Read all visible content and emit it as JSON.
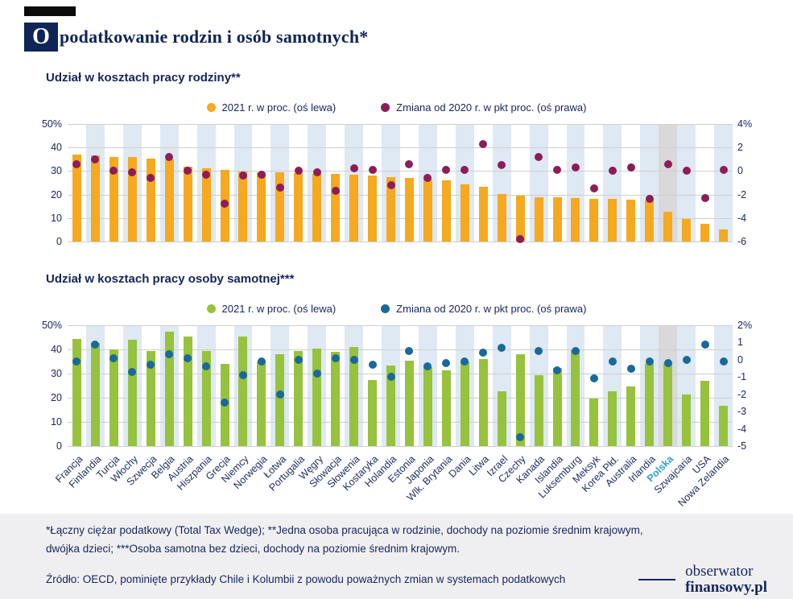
{
  "header": {
    "initial": "O",
    "title_rest": "podatkowanie rodzin i osób samotnych*"
  },
  "style": {
    "band_color": "#DEE9F3",
    "highlight_band_color": "#D9D9DA",
    "grid_color": "#CFCFCF",
    "text_color": "#14265E",
    "highlight_label_color": "#2FA0D8"
  },
  "highlight": {
    "country": "Polska"
  },
  "chart_data": [
    {
      "type": "bar",
      "title": "Udział w kosztach pracy rodziny**",
      "legend_position": "top",
      "grid": "horizontal",
      "categories": [
        "Francja",
        "Finlandia",
        "Turcja",
        "Włochy",
        "Szwecja",
        "Belgia",
        "Austria",
        "Hiszpania",
        "Grecja",
        "Niemcy",
        "Norwegia",
        "Łotwa",
        "Portugalia",
        "Węgry",
        "Słowacja",
        "Słowenia",
        "Kostaryka",
        "Holandia",
        "Estonia",
        "Japonia",
        "Wlk. Brytania",
        "Dania",
        "Litwa",
        "Izrael",
        "Czechy",
        "Kanada",
        "Islandia",
        "Luksemburg",
        "Meksyk",
        "Korea Płd.",
        "Australia",
        "Irlandia",
        "Polska",
        "Szwajcaria",
        "USA",
        "Nowa Zelandia"
      ],
      "series": [
        {
          "name": "2021 r. w proc. (oś lewa)",
          "type": "bar",
          "axis": "left",
          "color": "#F6A81F",
          "values": [
            36.9,
            36.6,
            35.9,
            35.8,
            35.4,
            34.8,
            32.0,
            31.0,
            30.6,
            29.8,
            29.6,
            29.4,
            29.2,
            28.9,
            28.6,
            28.3,
            28.0,
            27.3,
            27.0,
            26.5,
            25.9,
            24.2,
            23.2,
            20.2,
            19.4,
            18.9,
            18.7,
            18.5,
            18.3,
            18.1,
            17.9,
            17.6,
            12.6,
            9.6,
            7.5,
            5.0
          ]
        },
        {
          "name": "Zmiana od 2020 r. w pkt proc. (oś prawa)",
          "type": "scatter",
          "axis": "right",
          "color": "#8C1D59",
          "values": [
            0.6,
            1.0,
            0.0,
            -0.1,
            -0.6,
            1.2,
            0.0,
            -0.3,
            -2.8,
            -0.4,
            -0.3,
            -1.4,
            0.0,
            -0.1,
            -1.7,
            0.2,
            0.1,
            -1.2,
            0.6,
            -0.6,
            0.1,
            0.1,
            2.3,
            0.5,
            -5.8,
            1.2,
            0.1,
            0.3,
            -1.5,
            0.0,
            0.3,
            -2.4,
            0.6,
            0.0,
            -2.3,
            0.1
          ]
        }
      ],
      "left_axis": {
        "min": 0,
        "max": 50,
        "ticks": [
          {
            "label": "50%",
            "value": 50
          },
          {
            "label": "40",
            "value": 40
          },
          {
            "label": "30",
            "value": 30
          },
          {
            "label": "20",
            "value": 20
          },
          {
            "label": "10",
            "value": 10
          },
          {
            "label": "0",
            "value": 0
          }
        ]
      },
      "right_axis": {
        "min": -6,
        "max": 4,
        "ticks": [
          {
            "label": "4%",
            "value": 4
          },
          {
            "label": "2",
            "value": 2
          },
          {
            "label": "0",
            "value": 0
          },
          {
            "label": "-2",
            "value": -2
          },
          {
            "label": "-4",
            "value": -4
          },
          {
            "label": "-6",
            "value": -6
          }
        ]
      }
    },
    {
      "type": "bar",
      "title": "Udział w kosztach pracy osoby samotnej***",
      "legend_position": "top",
      "grid": "horizontal",
      "categories": [
        "Francja",
        "Finlandia",
        "Turcja",
        "Włochy",
        "Szwecja",
        "Belgia",
        "Austria",
        "Hiszpania",
        "Grecja",
        "Niemcy",
        "Norwegia",
        "Łotwa",
        "Portugalia",
        "Węgry",
        "Słowacja",
        "Słowenia",
        "Kostaryka",
        "Holandia",
        "Estonia",
        "Japonia",
        "Wlk. Brytania",
        "Dania",
        "Litwa",
        "Izrael",
        "Czechy",
        "Kanada",
        "Islandia",
        "Luksemburg",
        "Meksyk",
        "Korea Płd.",
        "Australia",
        "Irlandia",
        "Polska",
        "Szwajcaria",
        "USA",
        "Nowa Zelandia"
      ],
      "series": [
        {
          "name": "2021 r. w proc. (oś lewa)",
          "type": "bar",
          "axis": "left",
          "color": "#96C23D",
          "values": [
            44.3,
            42.6,
            39.9,
            44.0,
            39.5,
            47.3,
            45.2,
            39.3,
            34.0,
            45.4,
            35.0,
            38.0,
            39.3,
            40.5,
            39.0,
            41.0,
            27.5,
            33.5,
            35.4,
            32.6,
            31.3,
            35.0,
            36.0,
            22.7,
            38.0,
            29.5,
            32.2,
            39.8,
            19.6,
            22.8,
            24.6,
            34.0,
            34.2,
            21.5,
            27.0,
            16.8
          ]
        },
        {
          "name": "Zmiana od 2020 r. w pkt proc. (oś prawa)",
          "type": "scatter",
          "axis": "right",
          "color": "#1A699A",
          "values": [
            -0.1,
            0.9,
            0.1,
            -0.7,
            -0.3,
            0.3,
            0.1,
            -0.4,
            -2.5,
            -0.9,
            -0.1,
            -2.0,
            0.0,
            -0.8,
            0.1,
            0.0,
            -0.3,
            -1.0,
            0.5,
            -0.4,
            -0.2,
            -0.1,
            0.4,
            0.7,
            -4.5,
            0.5,
            -0.6,
            0.5,
            -1.1,
            -0.1,
            -0.5,
            -0.1,
            -0.2,
            0.0,
            0.9,
            -0.1
          ]
        }
      ],
      "left_axis": {
        "min": 0,
        "max": 50,
        "ticks": [
          {
            "label": "50%",
            "value": 50
          },
          {
            "label": "40",
            "value": 40
          },
          {
            "label": "30",
            "value": 30
          },
          {
            "label": "20",
            "value": 20
          },
          {
            "label": "10",
            "value": 10
          },
          {
            "label": "0",
            "value": 0
          }
        ]
      },
      "right_axis": {
        "min": -5,
        "max": 2,
        "ticks": [
          {
            "label": "2%",
            "value": 2
          },
          {
            "label": "1",
            "value": 1
          },
          {
            "label": "0",
            "value": 0
          },
          {
            "label": "-1",
            "value": -1
          },
          {
            "label": "-2",
            "value": -2
          },
          {
            "label": "-3",
            "value": -3
          },
          {
            "label": "-4",
            "value": -4
          },
          {
            "label": "-5",
            "value": -5
          }
        ]
      }
    }
  ],
  "footnotes": [
    "*Łączny ciężar podatkowy (Total Tax Wedge); **Jedna osoba pracująca w rodzinie, dochody na poziomie średnim krajowym,",
    "dwójka dzieci; ***Osoba samotna bez dzieci, dochody na poziomie średnim krajowym."
  ],
  "source": "Źródło: OECD, pominięte przykłady Chile i Kolumbii z powodu poważnych zmian w systemach podatkowych",
  "logo": {
    "line1": "obserwator",
    "line2": "finansowy.pl"
  }
}
